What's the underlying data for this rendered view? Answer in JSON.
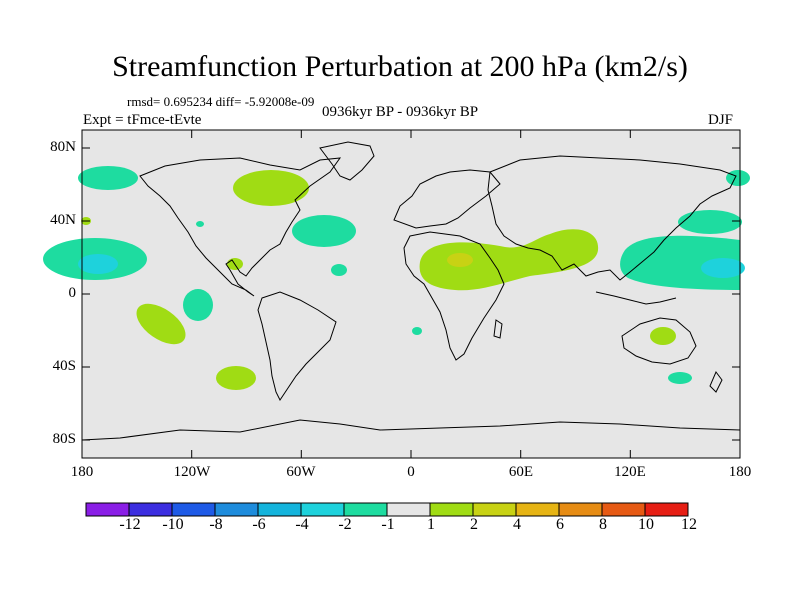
{
  "title": "Streamfunction Perturbation at 200 hPa (km2/s)",
  "stats": "rmsd= 0.695234 diff= -5.92008e-09",
  "experiment": "Expt = tFmce-tEvte",
  "period": "0936kyr BP - 0936kyr BP",
  "season": "DJF",
  "axes": {
    "lat_labels": [
      "80N",
      "40N",
      "0",
      "40S",
      "80S"
    ],
    "lon_labels": [
      "180",
      "120W",
      "60W",
      "0",
      "60E",
      "120E",
      "180"
    ]
  },
  "colorbar": {
    "labels": [
      "-12",
      "-10",
      "-8",
      "-6",
      "-4",
      "-2",
      "-1",
      "1",
      "2",
      "4",
      "6",
      "8",
      "10",
      "12"
    ],
    "colors": [
      "#8a1ee6",
      "#3c2ee0",
      "#1e5ae6",
      "#1e8cdc",
      "#14b4dc",
      "#1ed2dc",
      "#1edca0",
      "#e6e6e6",
      "#a0dc14",
      "#c8d214",
      "#e6b414",
      "#e68c14",
      "#e65a14",
      "#e61e14"
    ]
  },
  "colors": {
    "background": "#e6e6e6",
    "neg_1": "#1edca0",
    "neg_2": "#1ed2dc",
    "pos_1": "#a0dc14",
    "pos_2": "#c8d214"
  }
}
